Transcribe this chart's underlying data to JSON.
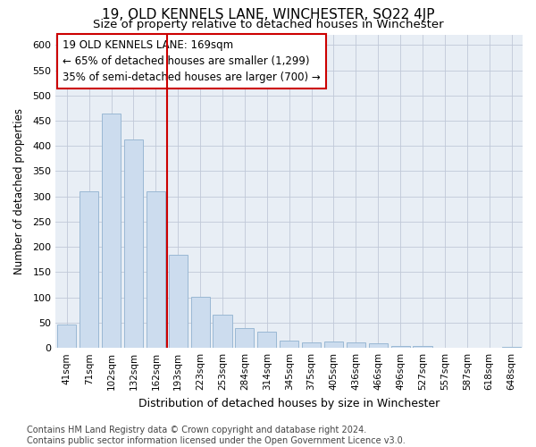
{
  "title": "19, OLD KENNELS LANE, WINCHESTER, SO22 4JP",
  "subtitle": "Size of property relative to detached houses in Winchester",
  "xlabel": "Distribution of detached houses by size in Winchester",
  "ylabel": "Number of detached properties",
  "categories": [
    "41sqm",
    "71sqm",
    "102sqm",
    "132sqm",
    "162sqm",
    "193sqm",
    "223sqm",
    "253sqm",
    "284sqm",
    "314sqm",
    "345sqm",
    "375sqm",
    "405sqm",
    "436sqm",
    "466sqm",
    "496sqm",
    "527sqm",
    "557sqm",
    "587sqm",
    "618sqm",
    "648sqm"
  ],
  "values": [
    47,
    311,
    465,
    413,
    311,
    185,
    102,
    65,
    40,
    32,
    14,
    11,
    13,
    11,
    9,
    4,
    4,
    1,
    1,
    0,
    2
  ],
  "bar_color": "#ccdcee",
  "bar_edge_color": "#9ab8d4",
  "vline_x": 4.5,
  "vline_color": "#cc0000",
  "annotation_line1": "19 OLD KENNELS LANE: 169sqm",
  "annotation_line2": "← 65% of detached houses are smaller (1,299)",
  "annotation_line3": "35% of semi-detached houses are larger (700) →",
  "annotation_box_color": "#ffffff",
  "annotation_box_edge_color": "#cc0000",
  "ylim": [
    0,
    620
  ],
  "yticks": [
    0,
    50,
    100,
    150,
    200,
    250,
    300,
    350,
    400,
    450,
    500,
    550,
    600
  ],
  "plot_bg_color": "#e8eef5",
  "grid_color": "#c0c8d8",
  "footer_text": "Contains HM Land Registry data © Crown copyright and database right 2024.\nContains public sector information licensed under the Open Government Licence v3.0.",
  "title_fontsize": 11,
  "subtitle_fontsize": 9.5,
  "xlabel_fontsize": 9,
  "ylabel_fontsize": 8.5,
  "tick_fontsize": 7.5,
  "ytick_fontsize": 8,
  "footer_fontsize": 7,
  "annotation_fontsize": 8.5
}
